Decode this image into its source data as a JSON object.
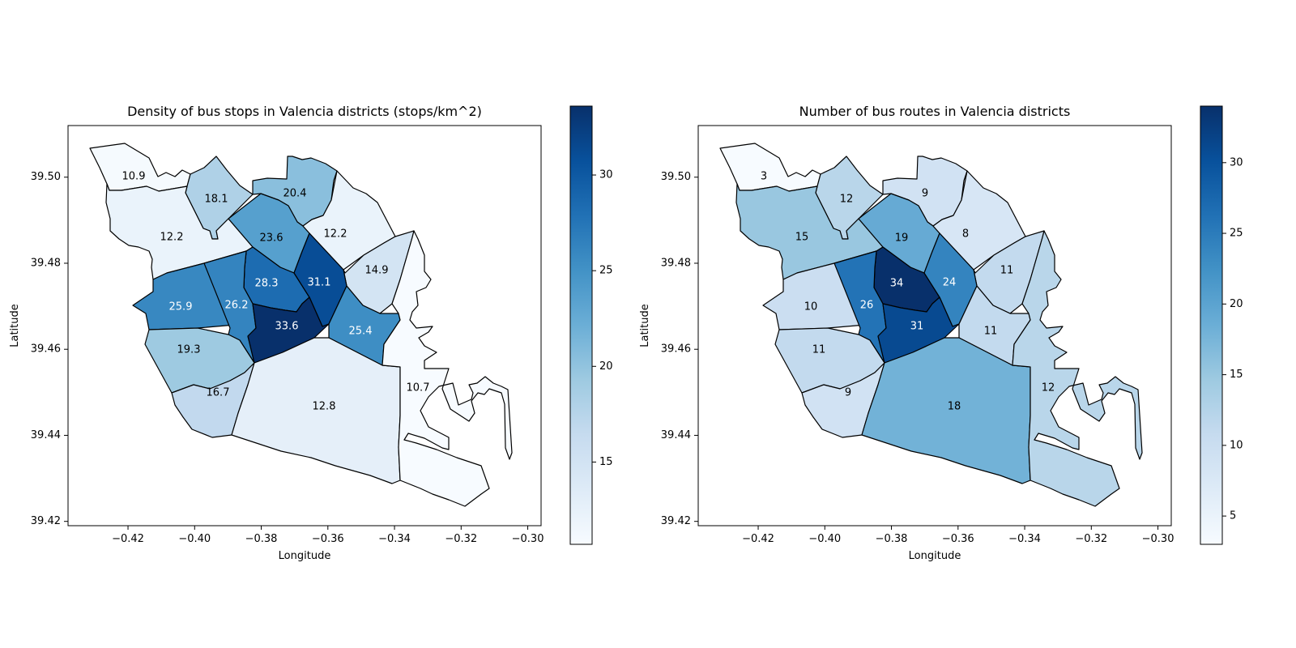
{
  "chart_data": [
    {
      "type": "choropleth",
      "title": "Density of bus stops in Valencia districts (stops/km^2)",
      "xlabel": "Longitude",
      "ylabel": "Latitude",
      "xlim": [
        -0.438,
        -0.296
      ],
      "ylim": [
        39.419,
        39.512
      ],
      "x_ticks": [
        -0.42,
        -0.4,
        -0.38,
        -0.36,
        -0.34,
        -0.32,
        -0.3
      ],
      "x_tick_labels": [
        "−0.42",
        "−0.40",
        "−0.38",
        "−0.36",
        "−0.34",
        "−0.32",
        "−0.30"
      ],
      "y_ticks": [
        39.42,
        39.44,
        39.46,
        39.48,
        39.5
      ],
      "y_tick_labels": [
        "39.42",
        "39.44",
        "39.46",
        "39.48",
        "39.50"
      ],
      "colormap": "Blues",
      "colorbar": {
        "min": 10.7,
        "max": 33.6,
        "ticks": [
          15,
          20,
          25,
          30
        ],
        "tick_labels": [
          "15",
          "20",
          "25",
          "30"
        ]
      },
      "districts": [
        {
          "id": "d1",
          "value": 10.9,
          "label": "10.9"
        },
        {
          "id": "d2",
          "value": 18.1,
          "label": "18.1"
        },
        {
          "id": "d3",
          "value": 20.4,
          "label": "20.4"
        },
        {
          "id": "d4",
          "value": 12.2,
          "label": "12.2"
        },
        {
          "id": "d5",
          "value": 23.6,
          "label": "23.6"
        },
        {
          "id": "d6",
          "value": 12.2,
          "label": "12.2"
        },
        {
          "id": "d7",
          "value": 14.9,
          "label": "14.9"
        },
        {
          "id": "d8",
          "value": 28.3,
          "label": "28.3"
        },
        {
          "id": "d9",
          "value": 31.1,
          "label": "31.1"
        },
        {
          "id": "d10",
          "value": 25.9,
          "label": "25.9"
        },
        {
          "id": "d11",
          "value": 26.2,
          "label": "26.2"
        },
        {
          "id": "d12",
          "value": 33.6,
          "label": "33.6"
        },
        {
          "id": "d13",
          "value": 25.4,
          "label": "25.4"
        },
        {
          "id": "d14",
          "value": 19.3,
          "label": "19.3"
        },
        {
          "id": "d15",
          "value": 16.7,
          "label": "16.7"
        },
        {
          "id": "d16",
          "value": 12.8,
          "label": "12.8"
        },
        {
          "id": "d17",
          "value": 10.7,
          "label": "10.7"
        }
      ]
    },
    {
      "type": "choropleth",
      "title": "Number of bus routes in Valencia districts",
      "xlabel": "Longitude",
      "ylabel": "Latitude",
      "xlim": [
        -0.438,
        -0.296
      ],
      "ylim": [
        39.419,
        39.512
      ],
      "x_ticks": [
        -0.42,
        -0.4,
        -0.38,
        -0.36,
        -0.34,
        -0.32,
        -0.3
      ],
      "x_tick_labels": [
        "−0.42",
        "−0.40",
        "−0.38",
        "−0.36",
        "−0.34",
        "−0.32",
        "−0.30"
      ],
      "y_ticks": [
        39.42,
        39.44,
        39.46,
        39.48,
        39.5
      ],
      "y_tick_labels": [
        "39.42",
        "39.44",
        "39.46",
        "39.48",
        "39.50"
      ],
      "colormap": "Blues",
      "colorbar": {
        "min": 3,
        "max": 34,
        "ticks": [
          5,
          10,
          15,
          20,
          25,
          30
        ],
        "tick_labels": [
          "5",
          "10",
          "15",
          "20",
          "25",
          "30"
        ]
      },
      "districts": [
        {
          "id": "d1",
          "value": 3,
          "label": "3"
        },
        {
          "id": "d2",
          "value": 12,
          "label": "12"
        },
        {
          "id": "d3",
          "value": 9,
          "label": "9"
        },
        {
          "id": "d4",
          "value": 15,
          "label": "15"
        },
        {
          "id": "d5",
          "value": 19,
          "label": "19"
        },
        {
          "id": "d6",
          "value": 8,
          "label": "8"
        },
        {
          "id": "d7",
          "value": 11,
          "label": "11"
        },
        {
          "id": "d8",
          "value": 34,
          "label": "34"
        },
        {
          "id": "d9",
          "value": 24,
          "label": "24"
        },
        {
          "id": "d10",
          "value": 10,
          "label": "10"
        },
        {
          "id": "d11",
          "value": 26,
          "label": "26"
        },
        {
          "id": "d12",
          "value": 31,
          "label": "31"
        },
        {
          "id": "d13",
          "value": 11,
          "label": "11"
        },
        {
          "id": "d14",
          "value": 11,
          "label": "11"
        },
        {
          "id": "d15",
          "value": 9,
          "label": "9"
        },
        {
          "id": "d16",
          "value": 18,
          "label": "18"
        },
        {
          "id": "d17",
          "value": 12,
          "label": "12"
        }
      ]
    }
  ]
}
